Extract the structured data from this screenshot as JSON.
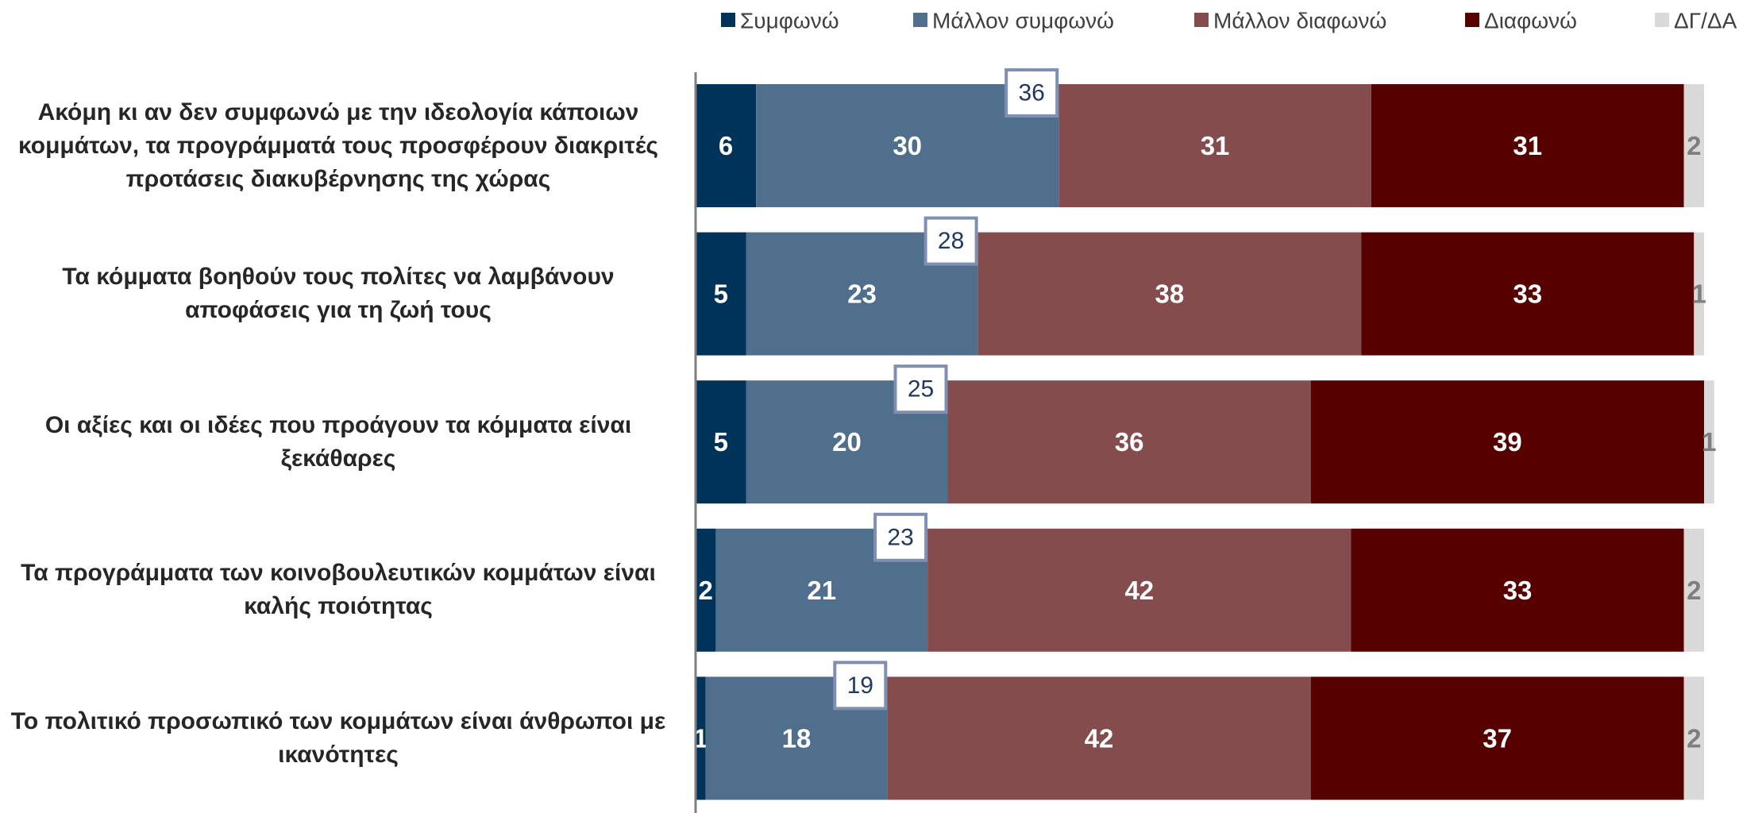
{
  "chart_data": {
    "type": "stacked-bar-horizontal",
    "categories": [
      "Ακόμη κι αν δεν συμφωνώ με την ιδεολογία κάποιων κομμάτων, τα προγράμματά τους προσφέρουν διακριτές προτάσεις διακυβέρνησης της χώρας",
      "Τα κόμματα βοηθούν τους πολίτες να λαμβάνουν αποφάσεις για τη ζωή τους",
      "Οι αξίες και οι ιδέες που προάγουν τα κόμματα είναι ξεκάθαρες",
      "Τα προγράμματα των κοινοβουλευτικών κομμάτων είναι καλής ποιότητας",
      "Το πολιτικό προσωπικό των κομμάτων είναι άνθρωποι με ικανότητες"
    ],
    "series": [
      {
        "name": "Συμφωνώ",
        "color": "#003359",
        "values": [
          6,
          5,
          5,
          2,
          1
        ]
      },
      {
        "name": "Μάλλον συμφωνώ",
        "color": "#4f6f8d",
        "values": [
          30,
          23,
          20,
          21,
          18
        ]
      },
      {
        "name": "Μάλλον διαφωνώ",
        "color": "#844c4c",
        "values": [
          31,
          38,
          36,
          42,
          42
        ]
      },
      {
        "name": "Διαφωνώ",
        "color": "#560000",
        "values": [
          31,
          33,
          39,
          33,
          37
        ]
      },
      {
        "name": "ΔΓ/ΔΑ",
        "color": "#d9d9d9",
        "values": [
          2,
          1,
          1,
          2,
          2
        ]
      }
    ],
    "annotations": [
      36,
      28,
      25,
      23,
      19
    ],
    "xlim": [
      0,
      100
    ]
  }
}
